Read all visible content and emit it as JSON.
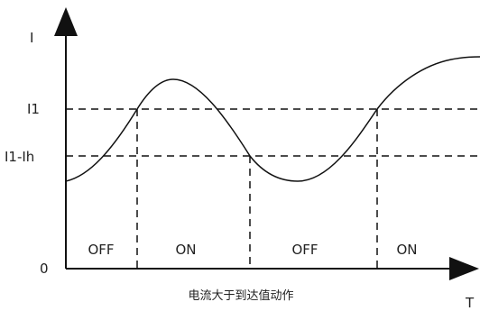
{
  "labels": {
    "y_axis": "I",
    "x_axis": "T",
    "origin": "0",
    "threshold_on": "I1",
    "threshold_off": "I1-Ih"
  },
  "regions": [
    "OFF",
    "ON",
    "OFF",
    "ON"
  ],
  "caption": "电流大于到达值动作",
  "colors": {
    "line": "#111111",
    "text": "#222222",
    "background": "#ffffff"
  }
}
